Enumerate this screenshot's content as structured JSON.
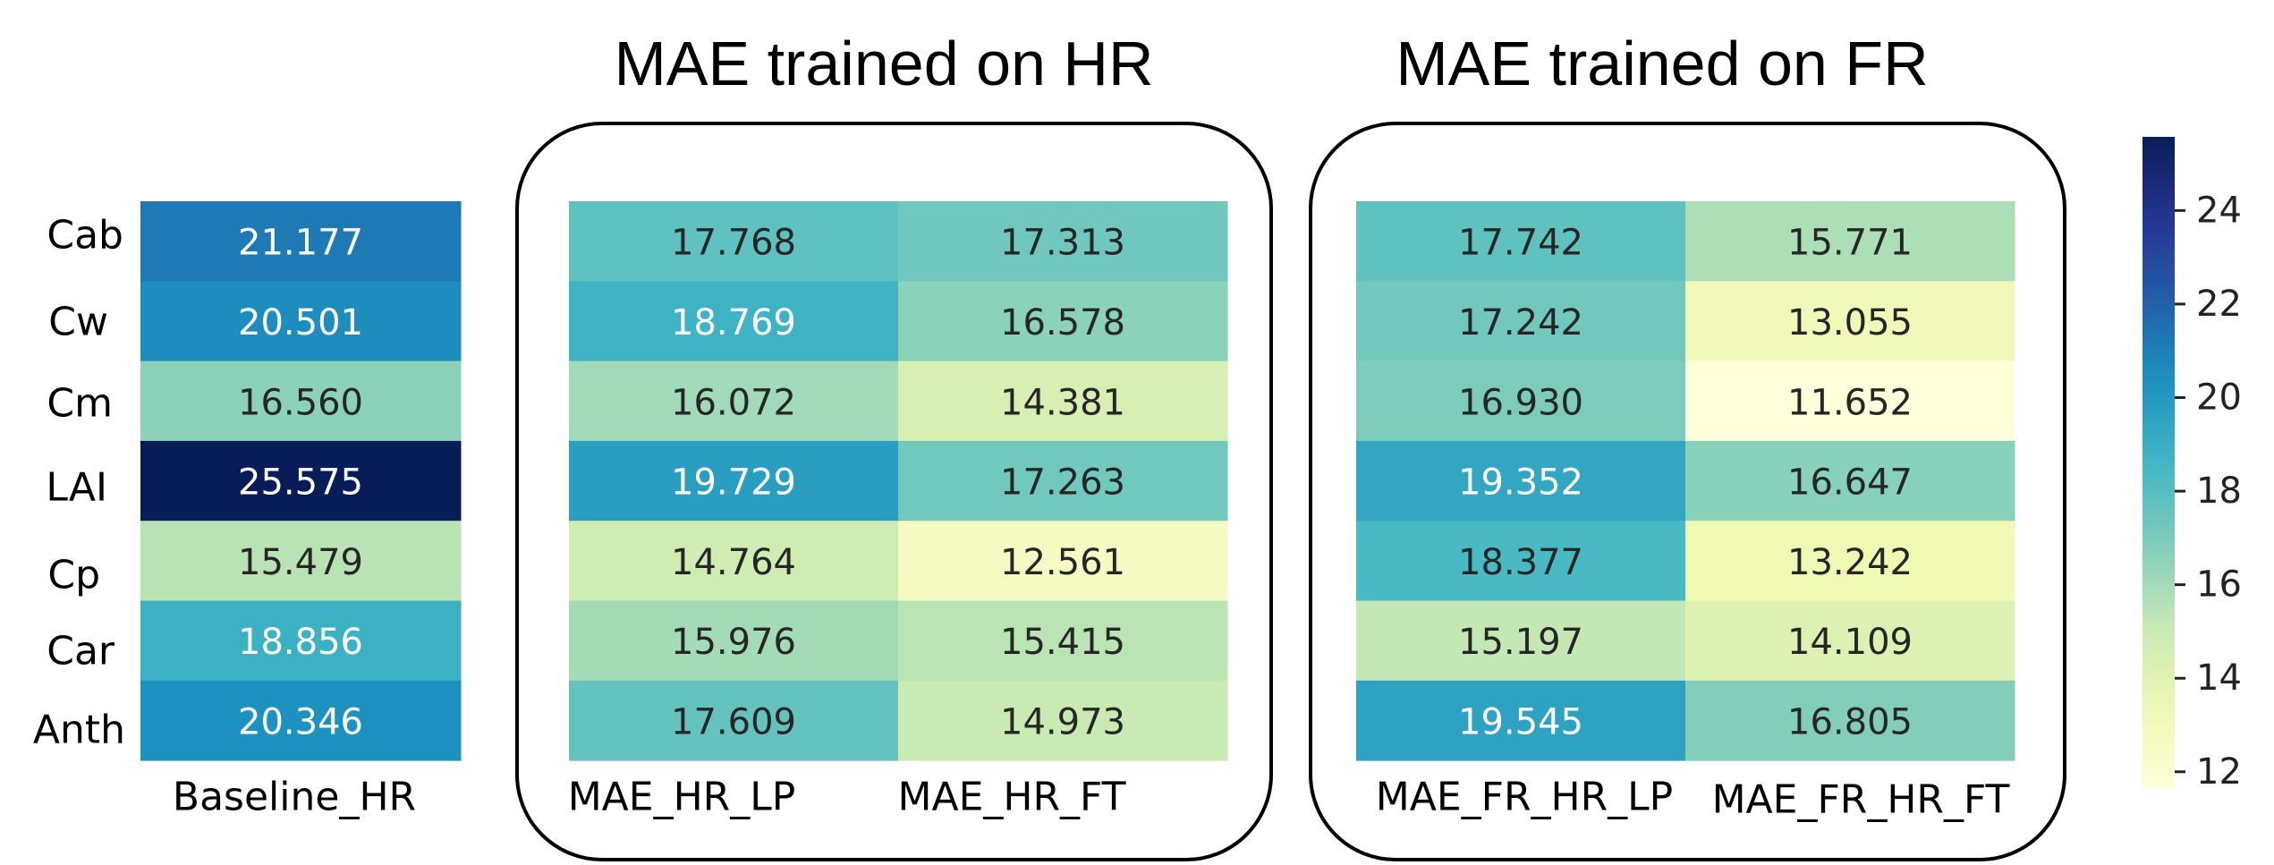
{
  "chart_data": {
    "type": "heatmap",
    "rows": [
      "Cab",
      "Cw",
      "Cm",
      "LAI",
      "Cp",
      "Car",
      "Anth"
    ],
    "groups": [
      {
        "title": "",
        "columns": [
          "Baseline_HR"
        ],
        "values": [
          [
            21.177
          ],
          [
            20.501
          ],
          [
            16.56
          ],
          [
            25.575
          ],
          [
            15.479
          ],
          [
            18.856
          ],
          [
            20.346
          ]
        ],
        "labels": [
          [
            "21.177"
          ],
          [
            "20.501"
          ],
          [
            "16.560"
          ],
          [
            "25.575"
          ],
          [
            "15.479"
          ],
          [
            "18.856"
          ],
          [
            "20.346"
          ]
        ]
      },
      {
        "title": "MAE trained on HR",
        "columns": [
          "MAE_HR_LP",
          "MAE_HR_FT"
        ],
        "values": [
          [
            17.768,
            17.313
          ],
          [
            18.769,
            16.578
          ],
          [
            16.072,
            14.381
          ],
          [
            19.729,
            17.263
          ],
          [
            14.764,
            12.561
          ],
          [
            15.976,
            15.415
          ],
          [
            17.609,
            14.973
          ]
        ],
        "labels": [
          [
            "17.768",
            "17.313"
          ],
          [
            "18.769",
            "16.578"
          ],
          [
            "16.072",
            "14.381"
          ],
          [
            "19.729",
            "17.263"
          ],
          [
            "14.764",
            "12.561"
          ],
          [
            "15.976",
            "15.415"
          ],
          [
            "17.609",
            "14.973"
          ]
        ]
      },
      {
        "title": "MAE trained on FR",
        "columns": [
          "MAE_FR_HR_LP",
          "MAE_FR_HR_FT"
        ],
        "values": [
          [
            17.742,
            15.771
          ],
          [
            17.242,
            13.055
          ],
          [
            16.93,
            11.652
          ],
          [
            19.352,
            16.647
          ],
          [
            18.377,
            13.242
          ],
          [
            15.197,
            14.109
          ],
          [
            19.545,
            16.805
          ]
        ],
        "labels": [
          [
            "17.742",
            "15.771"
          ],
          [
            "17.242",
            "13.055"
          ],
          [
            "16.930",
            "11.652"
          ],
          [
            "19.352",
            "16.647"
          ],
          [
            "18.377",
            "13.242"
          ],
          [
            "15.197",
            "14.109"
          ],
          [
            "19.545",
            "16.805"
          ]
        ]
      }
    ],
    "colorbar": {
      "colormap": "YlGnBu",
      "range": [
        11.652,
        25.575
      ],
      "ticks": [
        12,
        14,
        16,
        18,
        20,
        22,
        24
      ],
      "tick_labels": [
        "12",
        "14",
        "16",
        "18",
        "20",
        "22",
        "24"
      ]
    }
  }
}
